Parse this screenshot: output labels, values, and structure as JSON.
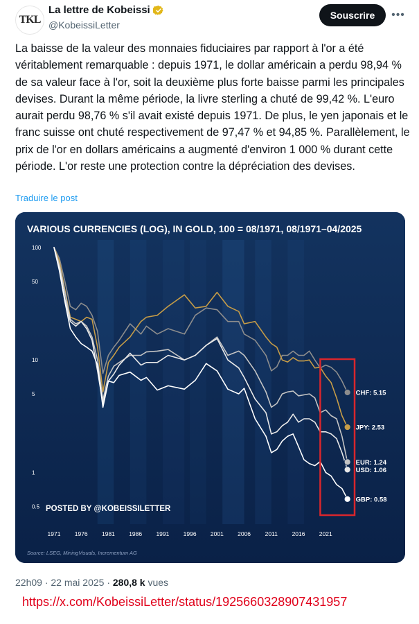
{
  "account": {
    "display_name": "La lettre de Kobeissi",
    "handle": "@KobeissiLetter",
    "avatar_text": "TKL"
  },
  "actions": {
    "subscribe_label": "Souscrire",
    "more_icon": "more-horizontal-icon"
  },
  "tweet": {
    "text": "La baisse de la valeur des monnaies fiduciaires par rapport à l'or a été véritablement remarquable : depuis 1971, le dollar américain a perdu 98,94 % de sa valeur face à l'or, soit la deuxième plus forte baisse parmi les principales devises. Durant la même période, la livre sterling a chuté de 99,42 %. L'euro aurait perdu 98,76 % s'il avait existé depuis 1971. De plus, le yen japonais et le franc suisse ont chuté respectivement de 97,47 % et 94,85 %. Parallèlement, le prix de l'or en dollars américains a augmenté d'environ 1 000 % durant cette période. L'or reste une protection contre la dépréciation des devises.",
    "translate_label": "Traduire le post"
  },
  "chart_data": {
    "type": "line",
    "title": "VARIOUS CURRENCIES (LOG), IN GOLD, 100 = 08/1971, 08/1971–04/2025",
    "y_scale": "log",
    "ylim": [
      0.4,
      100
    ],
    "y_ticks": [
      100,
      50,
      10,
      5,
      1,
      0.5
    ],
    "y_tick_labels": [
      "100",
      "50",
      "10",
      "5",
      "1",
      "0.5"
    ],
    "xlim": [
      1971,
      2025.3
    ],
    "x_ticks": [
      1971,
      1976,
      1981,
      1986,
      1991,
      1996,
      2001,
      2006,
      2011,
      2016,
      2021
    ],
    "x_tick_labels": [
      "1971",
      "1976",
      "1981",
      "1986",
      "1991",
      "1996",
      "2001",
      "2006",
      "2011",
      "2016",
      "2021"
    ],
    "watermark": "POSTED BY @KOBEISSILETTER",
    "source": "Source: LSEG, MiningVisuals, Incrementum AG",
    "highlight_box": {
      "x_range": [
        2020,
        2025.3
      ],
      "color": "#d9262c"
    },
    "series": [
      {
        "name": "CHF",
        "end_label": "CHF: 5.15",
        "color": "#8d8d8d",
        "x": [
          1971,
          1972,
          1973,
          1974,
          1975,
          1976,
          1977,
          1978,
          1979,
          1980,
          1981,
          1982,
          1983,
          1985,
          1987,
          1988,
          1990,
          1992,
          1995,
          1997,
          1999,
          2001,
          2003,
          2005,
          2006,
          2008,
          2010,
          2011,
          2012,
          2013,
          2014,
          2015,
          2016,
          2017,
          2018,
          2019,
          2020,
          2021,
          2022,
          2023,
          2024,
          2025
        ],
        "y": [
          100,
          80,
          50,
          30,
          28,
          32,
          30,
          25,
          18,
          7.6,
          11,
          13,
          15,
          21,
          17,
          20,
          17,
          19,
          17,
          25,
          29,
          28,
          22,
          22,
          17,
          15,
          11,
          8.0,
          8.7,
          11,
          11,
          12,
          11,
          11,
          12,
          10,
          8.5,
          9.0,
          8.6,
          7.8,
          6.5,
          5.15
        ]
      },
      {
        "name": "JPY",
        "end_label": "JPY: 2.53",
        "color": "#c69c47",
        "x": [
          1971,
          1972,
          1973,
          1974,
          1975,
          1976,
          1977,
          1978,
          1979,
          1980,
          1981,
          1982,
          1983,
          1985,
          1987,
          1988,
          1990,
          1992,
          1995,
          1997,
          1999,
          2001,
          2003,
          2005,
          2006,
          2008,
          2010,
          2011,
          2012,
          2013,
          2014,
          2015,
          2016,
          2017,
          2018,
          2019,
          2020,
          2021,
          2022,
          2023,
          2024,
          2025
        ],
        "y": [
          100,
          75,
          42,
          24,
          23,
          22,
          24,
          23,
          13,
          5.2,
          9.5,
          11,
          13,
          16,
          22,
          24,
          25,
          30,
          38,
          29,
          30,
          40,
          30,
          27,
          21,
          22,
          16,
          14,
          13,
          10,
          9.6,
          10.5,
          9.8,
          9.8,
          10,
          8.5,
          8.6,
          7.2,
          6.3,
          4.6,
          3.2,
          2.53
        ]
      },
      {
        "name": "EUR",
        "end_label": "EUR: 1.24",
        "color": "#c4c4c4",
        "x": [
          1971,
          1972,
          1973,
          1974,
          1975,
          1976,
          1977,
          1978,
          1979,
          1980,
          1981,
          1982,
          1983,
          1985,
          1987,
          1988,
          1990,
          1992,
          1995,
          1997,
          1999,
          2001,
          2003,
          2005,
          2006,
          2008,
          2010,
          2011,
          2012,
          2013,
          2014,
          2015,
          2016,
          2017,
          2018,
          2019,
          2020,
          2021,
          2022,
          2023,
          2024,
          2025
        ],
        "y": [
          100,
          70,
          40,
          23,
          21,
          22,
          20,
          16,
          10,
          4.4,
          7.2,
          8.8,
          9.5,
          11,
          11,
          11.8,
          12,
          12.4,
          10,
          11,
          13.5,
          16,
          11,
          12,
          11,
          8,
          5.2,
          3.8,
          4.1,
          5.0,
          5.2,
          5.3,
          4.8,
          4.9,
          5.0,
          4.6,
          3.4,
          3.6,
          3.2,
          3.0,
          2.1,
          1.24
        ]
      },
      {
        "name": "USD",
        "end_label": "USD: 1.06",
        "color": "#e8e8e8",
        "x": [
          1971,
          1972,
          1973,
          1974,
          1975,
          1976,
          1977,
          1978,
          1979,
          1980,
          1981,
          1982,
          1983,
          1985,
          1987,
          1988,
          1990,
          1992,
          1995,
          1997,
          1999,
          2001,
          2003,
          2005,
          2006,
          2008,
          2010,
          2011,
          2012,
          2013,
          2014,
          2015,
          2016,
          2017,
          2018,
          2019,
          2020,
          2021,
          2022,
          2023,
          2024,
          2025
        ],
        "y": [
          100,
          65,
          35,
          22,
          20,
          22,
          19,
          15,
          8,
          4.1,
          6.5,
          7.5,
          9.0,
          11.5,
          9.0,
          9.5,
          9.5,
          11,
          10,
          11,
          13.5,
          15.5,
          10,
          8.5,
          7.0,
          4.5,
          3.4,
          2.2,
          2.3,
          2.6,
          2.8,
          3.3,
          2.8,
          3.0,
          3.0,
          2.8,
          2.3,
          2.3,
          2.2,
          2.0,
          1.5,
          1.06
        ]
      },
      {
        "name": "GBP",
        "end_label": "GBP: 0.58",
        "color": "#ffffff",
        "x": [
          1971,
          1972,
          1973,
          1974,
          1975,
          1976,
          1977,
          1978,
          1979,
          1980,
          1981,
          1982,
          1983,
          1985,
          1987,
          1988,
          1990,
          1992,
          1995,
          1997,
          1999,
          2001,
          2003,
          2005,
          2006,
          2008,
          2010,
          2011,
          2012,
          2013,
          2014,
          2015,
          2016,
          2017,
          2018,
          2019,
          2020,
          2021,
          2022,
          2023,
          2024,
          2025
        ],
        "y": [
          100,
          62,
          33,
          19,
          16,
          14,
          13,
          12,
          9,
          3.8,
          6.5,
          6.3,
          7.3,
          7.8,
          6.6,
          7.0,
          5.4,
          5.9,
          5.5,
          6.6,
          9.3,
          8.0,
          5.5,
          5.0,
          5.6,
          3.0,
          2.1,
          1.5,
          1.6,
          1.9,
          2.1,
          2.2,
          1.7,
          1.3,
          1.2,
          1.15,
          1.25,
          1.0,
          0.93,
          0.78,
          0.72,
          0.58
        ]
      }
    ]
  },
  "meta": {
    "time_date": "22h09 · 22 mai 2025 ·",
    "views_count": "280,8 k",
    "views_label": "vues"
  },
  "source_url": "https://x.com/KobeissiLetter/status/1925660328907431957"
}
